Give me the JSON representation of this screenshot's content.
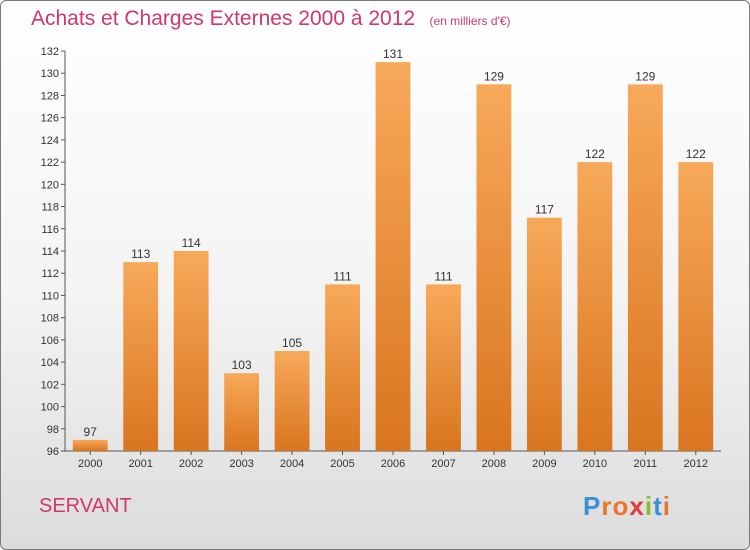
{
  "header": {
    "title": "Achats et Charges Externes 2000 à 2012",
    "subtitle": "(en milliers d'€)"
  },
  "footer": {
    "commune": "SERVANT",
    "logo_letters": [
      {
        "char": "P",
        "color": "#3a8fd8"
      },
      {
        "char": "r",
        "color": "#e9762b"
      },
      {
        "char": "o",
        "color": "#e9762b"
      },
      {
        "char": "x",
        "color": "#e23a3a"
      },
      {
        "char": "i",
        "color": "#8bbd2a"
      },
      {
        "char": "t",
        "color": "#3a8fd8"
      },
      {
        "char": "i",
        "color": "#e9762b"
      }
    ]
  },
  "chart_data": {
    "type": "bar",
    "title": "Achats et Charges Externes 2000 à 2012",
    "categories": [
      "2000",
      "2001",
      "2002",
      "2003",
      "2004",
      "2005",
      "2006",
      "2007",
      "2008",
      "2009",
      "2010",
      "2011",
      "2012"
    ],
    "values": [
      97,
      113,
      114,
      103,
      105,
      111,
      131,
      111,
      129,
      117,
      122,
      129,
      122
    ],
    "ylim": [
      96,
      132
    ],
    "yticks": [
      96,
      98,
      100,
      102,
      104,
      106,
      108,
      110,
      112,
      114,
      116,
      118,
      120,
      122,
      124,
      126,
      128,
      130,
      132
    ],
    "grid": false,
    "bar_color_top": "#f7a95a",
    "bar_color_bottom": "#d9751f"
  }
}
